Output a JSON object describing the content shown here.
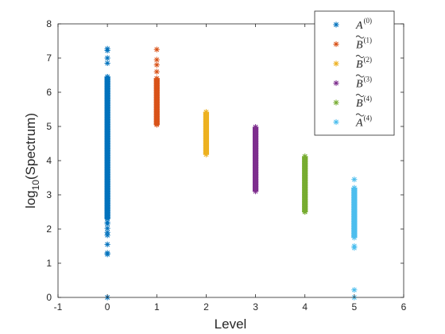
{
  "chart_data": {
    "type": "scatter",
    "xlabel": "Level",
    "ylabel": "log",
    "ylabel_sub": "10",
    "ylabel_rest": "(Spectrum)",
    "xlim": [
      -1,
      6
    ],
    "ylim": [
      0,
      8
    ],
    "xticks": [
      "-1",
      "0",
      "1",
      "2",
      "3",
      "4",
      "5",
      "6"
    ],
    "yticks": [
      "0",
      "1",
      "2",
      "3",
      "4",
      "5",
      "6",
      "7",
      "8"
    ],
    "grid": false,
    "legend_position": "top-right",
    "marker": "asterisk",
    "series": [
      {
        "name": "A",
        "tilde": false,
        "sup": "(0)",
        "color": "#0072BD",
        "x": 0,
        "dense_range": [
          2.3,
          6.45
        ],
        "y": [
          0.0,
          1.26,
          1.3,
          1.55,
          1.82,
          1.9,
          2.02,
          2.15,
          2.2,
          2.3,
          6.45,
          6.85,
          7.0,
          7.22,
          7.27
        ]
      },
      {
        "name": "B",
        "tilde": true,
        "sup": "(1)",
        "color": "#D95319",
        "x": 1,
        "dense_range": [
          5.05,
          6.4
        ],
        "y": [
          5.05,
          6.4,
          6.6,
          6.8,
          6.95,
          7.25
        ]
      },
      {
        "name": "B",
        "tilde": true,
        "sup": "(2)",
        "color": "#EDB120",
        "x": 2,
        "dense_range": [
          4.18,
          5.42
        ],
        "y": [
          4.18,
          5.42
        ]
      },
      {
        "name": "B",
        "tilde": true,
        "sup": "(3)",
        "color": "#7E2F8E",
        "x": 3,
        "dense_range": [
          3.1,
          4.98
        ],
        "y": [
          3.1,
          4.98
        ]
      },
      {
        "name": "B",
        "tilde": true,
        "sup": "(4)",
        "color": "#77AC30",
        "x": 4,
        "dense_range": [
          2.5,
          4.12
        ],
        "y": [
          2.5,
          4.12
        ]
      },
      {
        "name": "A",
        "tilde": true,
        "sup": "(4)",
        "color": "#4DBEEE",
        "x": 5,
        "dense_range": [
          1.75,
          3.2
        ],
        "y": [
          0.0,
          0.22,
          1.45,
          1.5,
          1.75,
          3.2,
          3.45
        ]
      }
    ]
  }
}
